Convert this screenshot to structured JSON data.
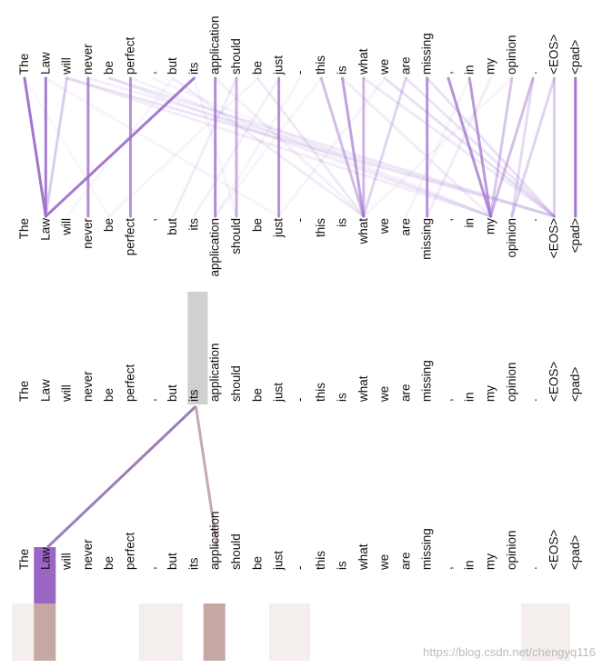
{
  "tokens": [
    "The",
    "Law",
    "will",
    "never",
    "be",
    "perfect",
    ",",
    "but",
    "its",
    "application",
    "should",
    "be",
    "just",
    "-",
    "this",
    "is",
    "what",
    "we",
    "are",
    "missing",
    ",",
    "in",
    "my",
    "opinion",
    ".",
    "<EOS>",
    "<pad>"
  ],
  "colors": {
    "all_heads": "#9d6fcc",
    "head_a": "#9a65c4",
    "head_b": "#c2a1a1",
    "selected_token": "#d0d0d0",
    "heat_a": "#9a65c4",
    "heat_b": "#c5a8a4",
    "heat_faint": "#f4eeec"
  },
  "all_heads_attention": [
    {
      "from": 0,
      "to": 1,
      "w": 0.95
    },
    {
      "from": 1,
      "to": 1,
      "w": 0.9
    },
    {
      "from": 8,
      "to": 1,
      "w": 0.92
    },
    {
      "from": 2,
      "to": 1,
      "w": 0.35
    },
    {
      "from": 3,
      "to": 3,
      "w": 0.8
    },
    {
      "from": 5,
      "to": 5,
      "w": 0.75
    },
    {
      "from": 9,
      "to": 9,
      "w": 0.8
    },
    {
      "from": 10,
      "to": 10,
      "w": 0.55
    },
    {
      "from": 12,
      "to": 12,
      "w": 0.75
    },
    {
      "from": 19,
      "to": 19,
      "w": 0.75
    },
    {
      "from": 26,
      "to": 26,
      "w": 0.95
    },
    {
      "from": 15,
      "to": 16,
      "w": 0.65
    },
    {
      "from": 14,
      "to": 16,
      "w": 0.45
    },
    {
      "from": 16,
      "to": 16,
      "w": 0.5
    },
    {
      "from": 18,
      "to": 16,
      "w": 0.3
    },
    {
      "from": 21,
      "to": 22,
      "w": 0.7
    },
    {
      "from": 20,
      "to": 22,
      "w": 0.75
    },
    {
      "from": 24,
      "to": 22,
      "w": 0.45
    },
    {
      "from": 23,
      "to": 22,
      "w": 0.4
    },
    {
      "from": 25,
      "to": 23,
      "w": 0.3
    },
    {
      "from": 25,
      "to": 25,
      "w": 0.35
    },
    {
      "from": 24,
      "to": 23,
      "w": 0.25
    },
    {
      "from": 2,
      "to": 25,
      "w": 0.18
    },
    {
      "from": 2,
      "to": 22,
      "w": 0.12
    },
    {
      "from": 4,
      "to": 25,
      "w": 0.15
    },
    {
      "from": 4,
      "to": 22,
      "w": 0.12
    },
    {
      "from": 3,
      "to": 25,
      "w": 0.1
    },
    {
      "from": 5,
      "to": 22,
      "w": 0.1
    },
    {
      "from": 7,
      "to": 16,
      "w": 0.12
    },
    {
      "from": 11,
      "to": 16,
      "w": 0.15
    },
    {
      "from": 17,
      "to": 25,
      "w": 0.22
    },
    {
      "from": 18,
      "to": 25,
      "w": 0.18
    },
    {
      "from": 16,
      "to": 25,
      "w": 0.15
    },
    {
      "from": 15,
      "to": 22,
      "w": 0.12
    },
    {
      "from": 10,
      "to": 7,
      "w": 0.12
    },
    {
      "from": 12,
      "to": 8,
      "w": 0.1
    },
    {
      "from": 19,
      "to": 25,
      "w": 0.2
    },
    {
      "from": 9,
      "to": 16,
      "w": 0.1
    },
    {
      "from": 1,
      "to": 12,
      "w": 0.08
    },
    {
      "from": 22,
      "to": 19,
      "w": 0.12
    },
    {
      "from": 13,
      "to": 9,
      "w": 0.08
    },
    {
      "from": 11,
      "to": 4,
      "w": 0.08
    },
    {
      "from": 21,
      "to": 18,
      "w": 0.08
    },
    {
      "from": 6,
      "to": 22,
      "w": 0.07
    },
    {
      "from": 14,
      "to": 9,
      "w": 0.07
    },
    {
      "from": 17,
      "to": 12,
      "w": 0.08
    },
    {
      "from": 23,
      "to": 16,
      "w": 0.08
    },
    {
      "from": 0,
      "to": 4,
      "w": 0.06
    },
    {
      "from": 8,
      "to": 10,
      "w": 0.07
    },
    {
      "from": 7,
      "to": 2,
      "w": 0.06
    }
  ],
  "selected_view": {
    "selected_token": 8,
    "links": [
      {
        "from": 8,
        "to": 1,
        "head": "a",
        "w": 0.9
      },
      {
        "from": 8,
        "to": 9,
        "head": "b",
        "w": 0.9
      }
    ],
    "heat_a": {
      "1": 0.95
    },
    "heat_b": {
      "1": 0.85,
      "9": 0.9,
      "0": 0.05,
      "7": 0.04,
      "13": 0.05,
      "24": 0.05,
      "25": 0.05
    }
  },
  "watermark": "https://blog.csdn.net/chengyq116"
}
